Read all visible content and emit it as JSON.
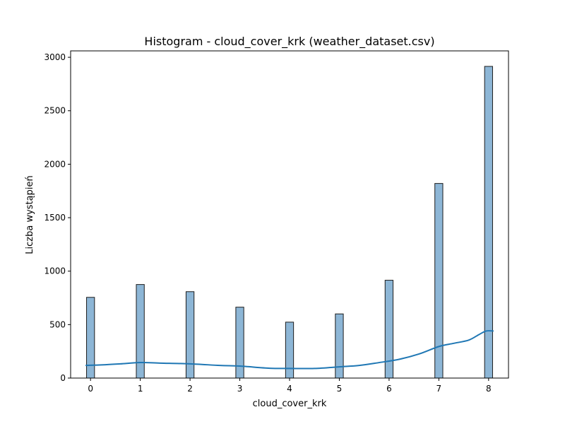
{
  "chart_data": {
    "type": "bar",
    "title": "Histogram - cloud_cover_krk (weather_dataset.csv)",
    "xlabel": "cloud_cover_krk",
    "ylabel": "Liczba wystąpień",
    "categories": [
      "0",
      "1",
      "2",
      "3",
      "4",
      "5",
      "6",
      "7",
      "8"
    ],
    "x": [
      0,
      1,
      2,
      3,
      4,
      5,
      6,
      7,
      8
    ],
    "values": [
      755,
      875,
      808,
      663,
      523,
      600,
      915,
      1820,
      2915
    ],
    "kde": {
      "x": [
        -0.1,
        0.3,
        0.6,
        1.0,
        1.4,
        2.0,
        2.6,
        3.0,
        3.6,
        4.0,
        4.5,
        5.0,
        5.4,
        5.8,
        6.2,
        6.6,
        7.0,
        7.3,
        7.6,
        7.8,
        7.95,
        8.1
      ],
      "y": [
        118,
        125,
        133,
        145,
        140,
        133,
        118,
        112,
        92,
        90,
        90,
        105,
        118,
        145,
        175,
        225,
        295,
        325,
        355,
        405,
        440,
        440
      ]
    },
    "xlim": [
      -0.4,
      8.4
    ],
    "ylim": [
      0,
      3060
    ],
    "xticks": [
      "0",
      "1",
      "2",
      "3",
      "4",
      "5",
      "6",
      "7",
      "8"
    ],
    "yticks": [
      "0",
      "500",
      "1000",
      "1500",
      "2000",
      "2500",
      "3000"
    ],
    "bar_fill": "#8db6d6",
    "bar_edge": "#1c1c1c",
    "kde_color": "#1f77b4",
    "grid": false,
    "legend": "none"
  }
}
